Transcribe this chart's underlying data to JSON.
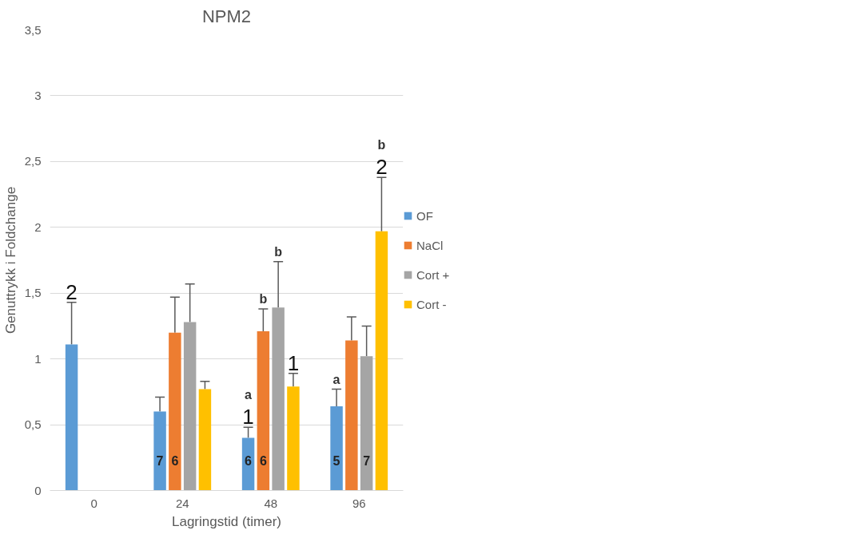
{
  "chart_data": {
    "type": "bar",
    "title": "NPM2",
    "xlabel": "Lagringstid (timer)",
    "ylabel": "Genuttrykk i Foldchange",
    "categories": [
      "0",
      "24",
      "48",
      "96"
    ],
    "series": [
      {
        "name": "OF",
        "color": "#5b9bd5",
        "values": [
          1.11,
          0.6,
          0.4,
          0.64
        ],
        "errors": [
          0.32,
          0.11,
          0.08,
          0.13
        ]
      },
      {
        "name": "NaCl",
        "color": "#ed7d31",
        "values": [
          null,
          1.2,
          1.21,
          1.14
        ],
        "errors": [
          null,
          0.27,
          0.17,
          0.18
        ]
      },
      {
        "name": "Cort +",
        "color": "#a5a5a5",
        "values": [
          null,
          1.28,
          1.39,
          1.02
        ],
        "errors": [
          null,
          0.29,
          0.35,
          0.23
        ]
      },
      {
        "name": "Cort -",
        "color": "#ffc000",
        "values": [
          null,
          0.77,
          0.79,
          1.97
        ],
        "errors": [
          null,
          0.06,
          0.1,
          0.41
        ]
      }
    ],
    "annotations": [
      "2",
      "1",
      "a",
      "b",
      "b",
      "1",
      "a",
      "2",
      "b",
      "7",
      "6",
      "6",
      "6",
      "5",
      "7"
    ],
    "ylim": [
      0,
      3.5
    ],
    "yticks": [
      {
        "value": 0,
        "label": "0"
      },
      {
        "value": 0.5,
        "label": "0,5"
      },
      {
        "value": 1,
        "label": "1"
      },
      {
        "value": 1.5,
        "label": "1,5"
      },
      {
        "value": 2,
        "label": "2"
      },
      {
        "value": 2.5,
        "label": "2,5"
      },
      {
        "value": 3,
        "label": "3"
      },
      {
        "value": 3.5,
        "label": "3,5"
      }
    ],
    "grid": "y",
    "legend": "right"
  }
}
